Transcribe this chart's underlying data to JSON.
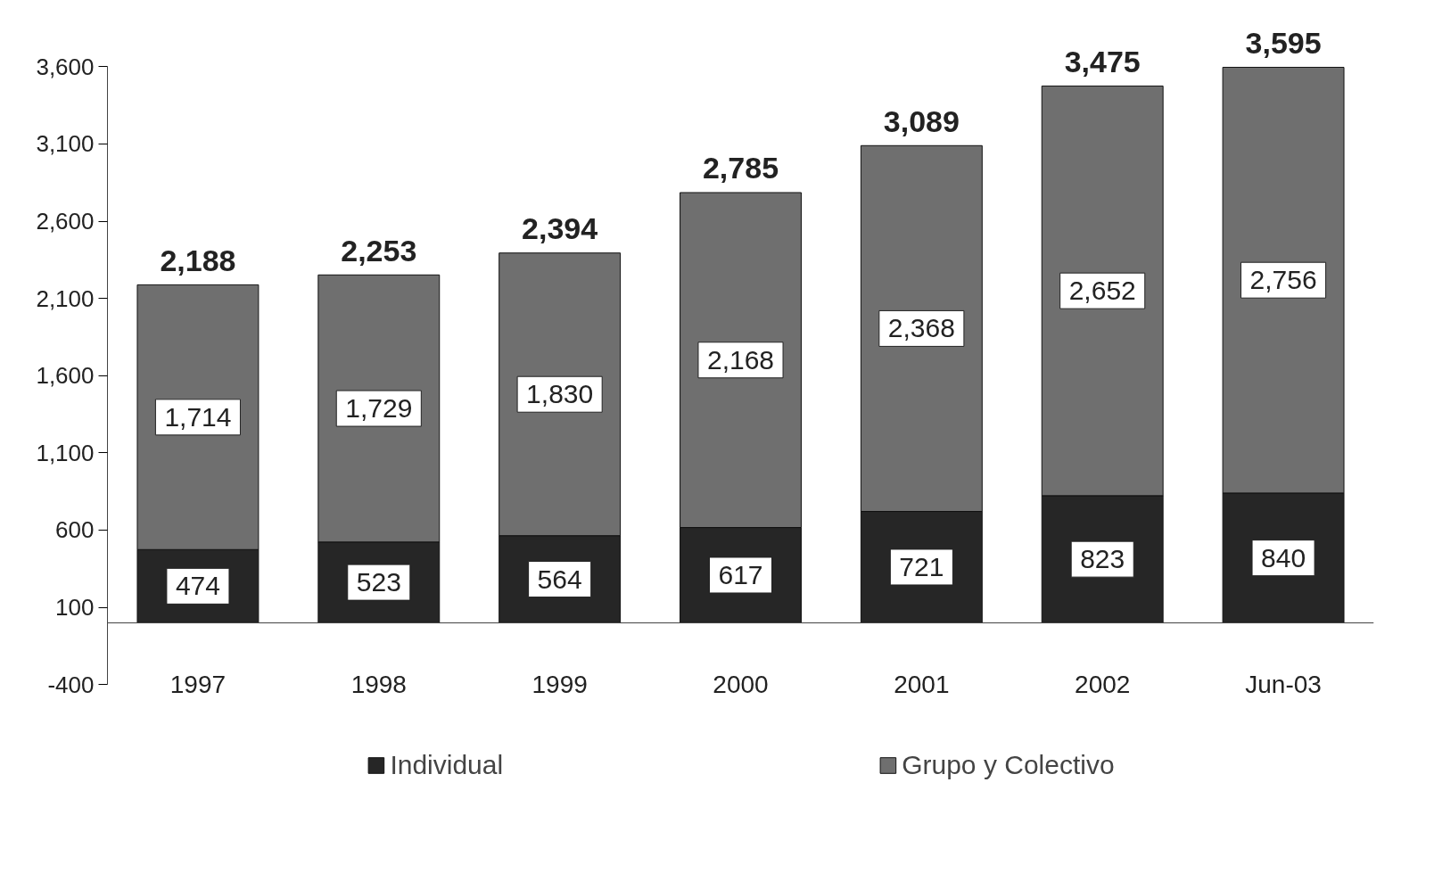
{
  "chart_data": {
    "type": "bar",
    "stacked": true,
    "categories": [
      "1997",
      "1998",
      "1999",
      "2000",
      "2001",
      "2002",
      "Jun-03"
    ],
    "series": [
      {
        "name": "Individual",
        "color": "#262626",
        "values": [
          474,
          523,
          564,
          617,
          721,
          823,
          840
        ],
        "value_labels": [
          "474",
          "523",
          "564",
          "617",
          "721",
          "823",
          "840"
        ]
      },
      {
        "name": "Grupo y Colectivo",
        "color": "#6f6f6f",
        "values": [
          1714,
          1729,
          1830,
          2168,
          2368,
          2652,
          2756
        ],
        "value_labels": [
          "1,714",
          "1,729",
          "1,830",
          "2,168",
          "2,368",
          "2,652",
          "2,756"
        ]
      }
    ],
    "totals": [
      "2,188",
      "2,253",
      "2,394",
      "2,785",
      "3,089",
      "3,475",
      "3,595"
    ],
    "ylim": [
      -400,
      3600
    ],
    "yticks": [
      {
        "value": -400,
        "label": "-400"
      },
      {
        "value": 100,
        "label": "100"
      },
      {
        "value": 600,
        "label": "600"
      },
      {
        "value": 1100,
        "label": "1,100"
      },
      {
        "value": 1600,
        "label": "1,600"
      },
      {
        "value": 2100,
        "label": "2,100"
      },
      {
        "value": 2600,
        "label": "2,600"
      },
      {
        "value": 3100,
        "label": "3,100"
      },
      {
        "value": 3600,
        "label": "3,600"
      }
    ],
    "grid": false,
    "legend": "bottom"
  }
}
